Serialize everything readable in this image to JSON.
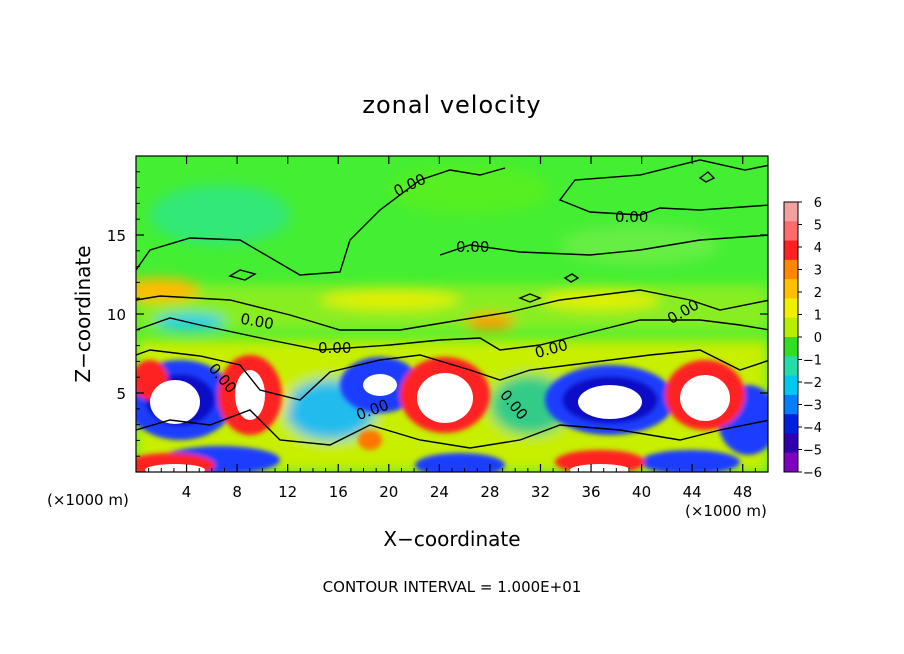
{
  "chart_data": {
    "type": "heatmap",
    "title": "zonal velocity",
    "xlabel": "X−coordinate",
    "ylabel": "Z−coordinate",
    "x_unit": "(×1000 m)",
    "xlim": [
      0,
      50
    ],
    "ylim": [
      0,
      20
    ],
    "x_ticks": [
      4,
      8,
      12,
      16,
      20,
      24,
      28,
      32,
      36,
      40,
      44,
      48
    ],
    "y_ticks": [
      5,
      10,
      15
    ],
    "colorbar_ticks": [
      6,
      5,
      4,
      3,
      2,
      1,
      0,
      -1,
      -2,
      -3,
      -4,
      -5,
      -6
    ],
    "colorbar_colors": [
      "#f2a0a0",
      "#ff6a6a",
      "#ff2020",
      "#ff8800",
      "#ffc000",
      "#f0f000",
      "#b8ee00",
      "#33dd22",
      "#22ddaa",
      "#00c8ee",
      "#0080ff",
      "#0020e0",
      "#3000b0",
      "#8000c0"
    ],
    "contour_label": "0.00",
    "contour_interval_text": "CONTOUR INTERVAL = 1.000E+01",
    "grid": false,
    "colorbar_position": "right"
  }
}
